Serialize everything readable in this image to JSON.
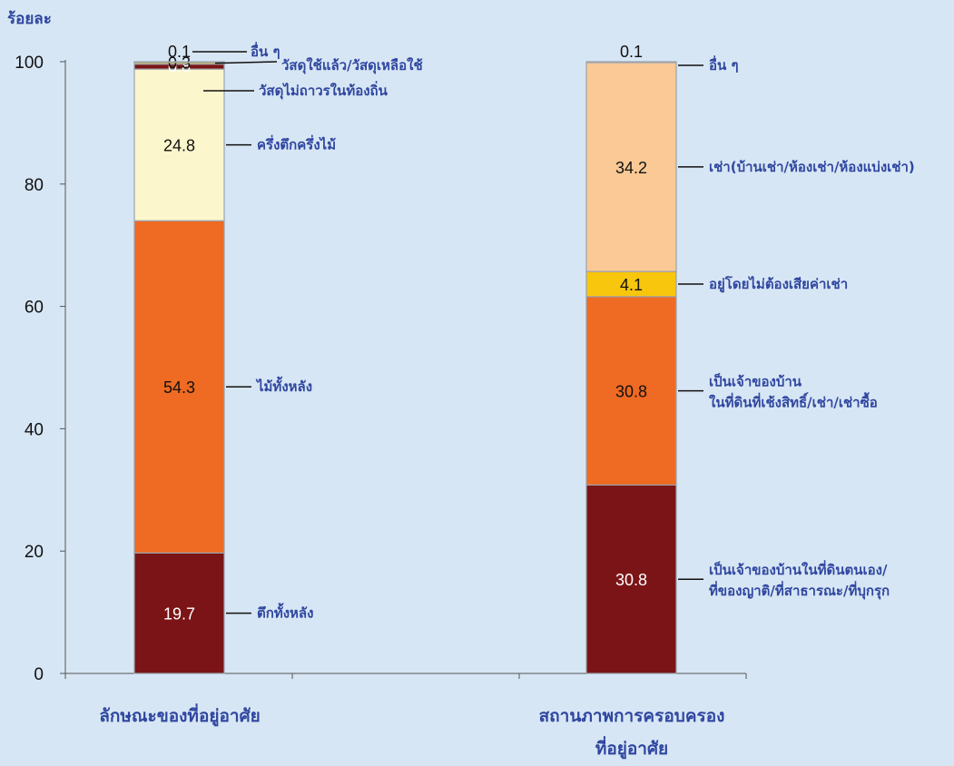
{
  "chart_data": {
    "type": "bar",
    "stacked": true,
    "ylabel": "ร้อยละ",
    "ylim": [
      0,
      100
    ],
    "yticks": [
      0,
      20,
      40,
      60,
      80,
      100
    ],
    "grid": false,
    "bars": [
      {
        "category": "ลักษณะของที่อยู่อาศัย",
        "segments": [
          {
            "label": "ตึกทั้งหลัง",
            "value": 19.7,
            "color": "#7b1416",
            "text_color": "#ffffff",
            "value_label": "19.7"
          },
          {
            "label": "ไม้ทั้งหลัง",
            "value": 54.3,
            "color": "#ef6a22",
            "text_color": "#111111",
            "value_label": "54.3"
          },
          {
            "label": "ครึ่งตึกครึ่งไม้",
            "value": 24.8,
            "color": "#fcf6cc",
            "text_color": "#111111",
            "value_label": "24.8"
          },
          {
            "label": "วัสดุไม่ถาวรในท้องถิ่น",
            "value": 0.8,
            "color": "#7b1416",
            "text_color": "#ffffff",
            "value_label": "0.8"
          },
          {
            "label": "วัสดุใช้แล้ว/วัสดุเหลือใช้",
            "value": 0.3,
            "color": "#f8c60c",
            "text_color": "#111111",
            "value_label": "0.3"
          },
          {
            "label": "อื่น ๆ",
            "value": 0.1,
            "color": "#e8242a",
            "text_color": "#111111",
            "value_label": "0.1"
          }
        ]
      },
      {
        "category": "สถานภาพการครอบครอง\nที่อยู่อาศัย",
        "segments": [
          {
            "label": "เป็นเจ้าของบ้านในที่ดินตนเอง/\nที่ของญาติ/ที่สาธารณะ/ที่บุกรุก",
            "value": 30.8,
            "color": "#7b1416",
            "text_color": "#ffffff",
            "value_label": "30.8"
          },
          {
            "label": "เป็นเจ้าของบ้าน\nในที่ดินที่เช้งสิทธิ์/เช่า/เช่าซื้อ",
            "value": 30.8,
            "color": "#ef6a22",
            "text_color": "#111111",
            "value_label": "30.8"
          },
          {
            "label": "อยู่โดยไม่ต้องเสียค่าเช่า",
            "value": 4.1,
            "color": "#f8c60c",
            "text_color": "#111111",
            "value_label": "4.1"
          },
          {
            "label": "เช่า(บ้านเช่า/ห้องเช่า/ห้องแบ่งเช่า)",
            "value": 34.2,
            "color": "#fbc995",
            "text_color": "#111111",
            "value_label": "34.2"
          },
          {
            "label": "อื่น ๆ",
            "value": 0.1,
            "color": "#7b1416",
            "text_color": "#111111",
            "value_label": "0.1"
          }
        ]
      }
    ]
  }
}
